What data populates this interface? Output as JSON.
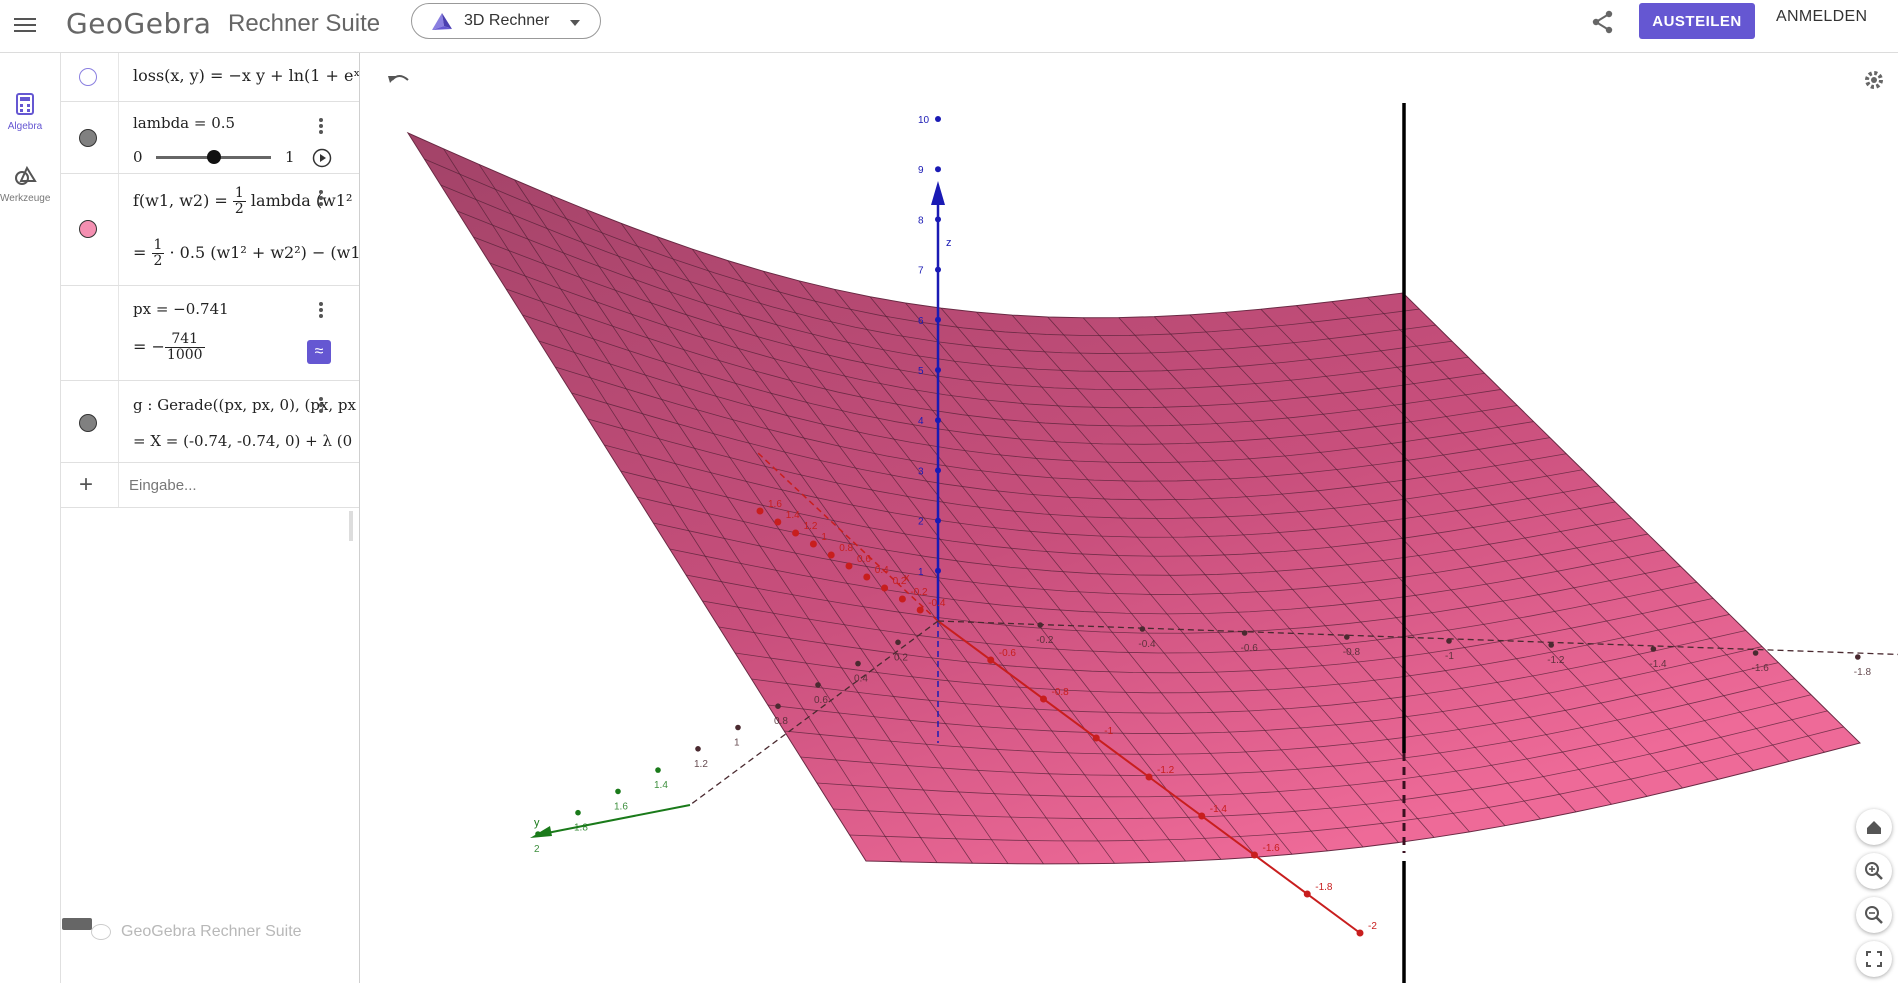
{
  "header": {
    "brand": "GeoGebra",
    "suite_title": "Rechner Suite",
    "app_selector": "3D Rechner",
    "share_button": "AUSTEILEN",
    "login_button": "ANMELDEN"
  },
  "rail": {
    "algebra_label": "Algebra",
    "tools_label": "Werkzeuge"
  },
  "algebra": {
    "rows": [
      {
        "input": "loss(x, y) = −x y + ln(1 + eˣ)"
      },
      {
        "input": "lambda = 0.5",
        "slider_min": "0",
        "slider_max": "1",
        "slider_value": 0.5
      },
      {
        "input_left": "f(w1, w2) = ",
        "frac_num": "1",
        "frac_den": "2",
        "input_right": " lambda (w1²",
        "output_prefix": "= ",
        "output_right": " · 0.5 (w1² + w2²) − (w1"
      },
      {
        "input": "px = −0.741",
        "output_prefix": "= −",
        "frac_num": "741",
        "frac_den": "1000",
        "approx_symbol": "≈"
      },
      {
        "input": "g : Gerade((px, px, 0), (px, px",
        "output": "= X = (-0.74, -0.74, 0) + λ (0"
      }
    ],
    "input_placeholder": "Eingabe...",
    "footer_brand": "GeoGebra Rechner Suite"
  },
  "view3d": {
    "z_axis_label": "z",
    "x_axis_label": "x",
    "y_axis_label": "y",
    "z_ticks": [
      "1",
      "2",
      "3",
      "4",
      "5",
      "6",
      "7",
      "8",
      "9",
      "10"
    ],
    "x_ticks": [
      "1.6",
      "1.4",
      "1.2",
      "1",
      "0.8",
      "0.6",
      "0.4",
      "0.2",
      "-0.2",
      "-0.4",
      "-0.6",
      "-0.8",
      "-1",
      "-1.2",
      "-1.4",
      "-1.6",
      "-1.8",
      "-2"
    ],
    "y_ticks": [
      "2",
      "1.8",
      "1.6",
      "1.4",
      "1.2",
      "1",
      "0.8",
      "0.6",
      "0.4",
      "0.2",
      "-0.2",
      "-0.4",
      "-0.6",
      "-0.8",
      "-1",
      "-1.2",
      "-1.4",
      "-1.6",
      "-1.8",
      "-2"
    ],
    "colors": {
      "surface": "#c0507a",
      "z_axis": "#1a1ab4",
      "x_axis": "#c81e1e",
      "y_axis": "#1a7a1a",
      "accent": "#6557d2"
    }
  }
}
